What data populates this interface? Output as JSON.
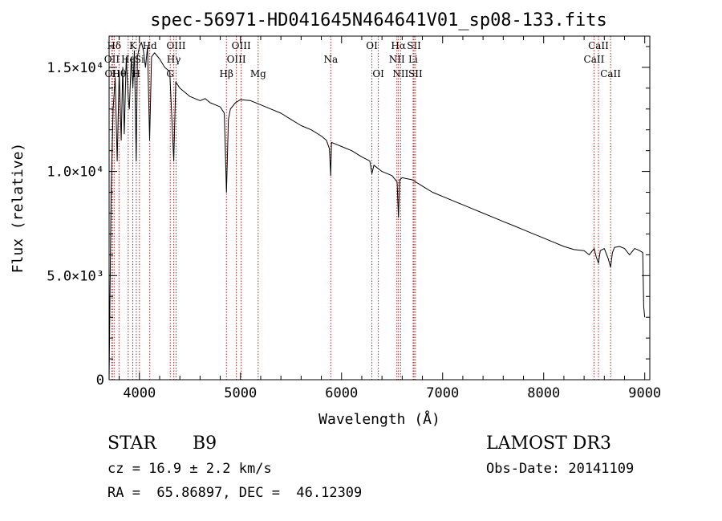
{
  "chart_data": {
    "type": "line",
    "title": "spec-56971-HD041645N464641V01_sp08-133.fits",
    "xlabel": "Wavelength (Å)",
    "ylabel": "Flux (relative)",
    "xlim": [
      3700,
      9050
    ],
    "ylim": [
      0,
      16500
    ],
    "x_ticks": [
      {
        "value": 4000,
        "label": "4000"
      },
      {
        "value": 5000,
        "label": "5000"
      },
      {
        "value": 6000,
        "label": "6000"
      },
      {
        "value": 7000,
        "label": "7000"
      },
      {
        "value": 8000,
        "label": "8000"
      },
      {
        "value": 9000,
        "label": "9000"
      }
    ],
    "y_ticks": [
      {
        "value": 0,
        "label": "0"
      },
      {
        "value": 5000,
        "label": "5.0×10³"
      },
      {
        "value": 10000,
        "label": "1.0×10⁴"
      },
      {
        "value": 15000,
        "label": "1.5×10⁴"
      }
    ],
    "series": [
      {
        "name": "spectrum",
        "x": [
          3700,
          3720,
          3740,
          3760,
          3780,
          3800,
          3820,
          3835,
          3850,
          3870,
          3890,
          3900,
          3920,
          3935,
          3950,
          3968,
          3980,
          4000,
          4020,
          4040,
          4060,
          4080,
          4101,
          4120,
          4150,
          4200,
          4250,
          4300,
          4340,
          4360,
          4400,
          4450,
          4500,
          4550,
          4600,
          4650,
          4700,
          4750,
          4800,
          4840,
          4861,
          4880,
          4900,
          4950,
          5000,
          5100,
          5200,
          5300,
          5400,
          5500,
          5600,
          5700,
          5800,
          5850,
          5880,
          5893,
          5900,
          5950,
          6000,
          6100,
          6200,
          6280,
          6300,
          6320,
          6400,
          6500,
          6550,
          6563,
          6575,
          6600,
          6700,
          6800,
          6900,
          7000,
          7100,
          7200,
          7300,
          7400,
          7500,
          7600,
          7700,
          7800,
          7900,
          8000,
          8100,
          8200,
          8300,
          8400,
          8450,
          8500,
          8520,
          8542,
          8560,
          8600,
          8640,
          8662,
          8680,
          8700,
          8750,
          8800,
          8850,
          8900,
          8950,
          8980,
          8990,
          9000
        ],
        "y": [
          0,
          9000,
          13000,
          14500,
          10500,
          14800,
          11500,
          15000,
          11800,
          15500,
          13500,
          13000,
          15500,
          14000,
          15800,
          10500,
          15500,
          16000,
          16200,
          15800,
          15000,
          16000,
          11500,
          15500,
          15700,
          15400,
          15000,
          14800,
          10500,
          14300,
          14000,
          13800,
          13600,
          13500,
          13400,
          13500,
          13300,
          13200,
          13100,
          12800,
          9000,
          12500,
          13000,
          13300,
          13450,
          13400,
          13200,
          13000,
          12800,
          12500,
          12200,
          12000,
          11700,
          11500,
          11100,
          9800,
          11400,
          11300,
          11200,
          11000,
          10700,
          10500,
          9900,
          10300,
          10000,
          9800,
          9500,
          7800,
          9600,
          9700,
          9600,
          9300,
          9000,
          8800,
          8600,
          8400,
          8200,
          8000,
          7800,
          7600,
          7400,
          7200,
          7000,
          6800,
          6600,
          6400,
          6250,
          6200,
          6000,
          6300,
          5900,
          5600,
          6200,
          6300,
          5800,
          5400,
          6100,
          6350,
          6400,
          6300,
          6000,
          6300,
          6200,
          6100,
          3500,
          3000
        ]
      }
    ],
    "line_markers": [
      {
        "label": "Hδ",
        "x": 3750,
        "row": 1
      },
      {
        "label": "OII",
        "x": 3727,
        "row": 2
      },
      {
        "label": "OII",
        "x": 3733,
        "row": 3
      },
      {
        "label": "Hθ",
        "x": 3798,
        "row": 3
      },
      {
        "label": "K",
        "x": 3934,
        "row": 1
      },
      {
        "label": "H",
        "x": 3969,
        "row": 3
      },
      {
        "label": "He",
        "x": 3889,
        "row": 2
      },
      {
        "label": "Si",
        "x": 4000,
        "row": 2
      },
      {
        "label": "Hd",
        "x": 4102,
        "row": 1
      },
      {
        "label": "OIII",
        "x": 4363,
        "row": 1
      },
      {
        "label": "Hγ",
        "x": 4340,
        "row": 2
      },
      {
        "label": "G",
        "x": 4305,
        "row": 3
      },
      {
        "label": "OIII",
        "x": 5007,
        "row": 1
      },
      {
        "label": "OIII",
        "x": 4959,
        "row": 2
      },
      {
        "label": "Hβ",
        "x": 4861,
        "row": 3
      },
      {
        "label": "Mg",
        "x": 5175,
        "row": 3
      },
      {
        "label": "Na",
        "x": 5893,
        "row": 2
      },
      {
        "label": "OI",
        "x": 6300,
        "row": 1
      },
      {
        "label": "OI",
        "x": 6364,
        "row": 3
      },
      {
        "label": "Hα",
        "x": 6563,
        "row": 1
      },
      {
        "label": "NII",
        "x": 6548,
        "row": 2
      },
      {
        "label": "NII",
        "x": 6584,
        "row": 3
      },
      {
        "label": "SII",
        "x": 6717,
        "row": 1
      },
      {
        "label": "Li",
        "x": 6708,
        "row": 2
      },
      {
        "label": "SII",
        "x": 6731,
        "row": 3
      },
      {
        "label": "CaII",
        "x": 8542,
        "row": 1
      },
      {
        "label": "CaII",
        "x": 8498,
        "row": 2
      },
      {
        "label": "CaII",
        "x": 8662,
        "row": 3
      }
    ]
  },
  "info": {
    "object_class": "STAR",
    "subclass": "B9",
    "survey": "LAMOST DR3",
    "redshift_line": "cz = 16.9 ± 2.2 km/s",
    "obs_date_line": "Obs-Date: 20141109",
    "coords_line": "RA =  65.86897, DEC =  46.12309"
  },
  "colors": {
    "marker": "#b22222",
    "spectrum": "#000000"
  }
}
